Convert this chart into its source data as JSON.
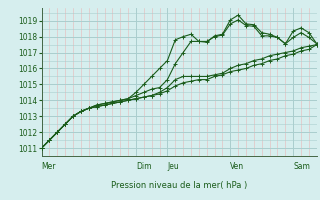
{
  "xlabel": "Pression niveau de la mer( hPa )",
  "ylim": [
    1010.5,
    1019.8
  ],
  "yticks": [
    1011,
    1012,
    1013,
    1014,
    1015,
    1016,
    1017,
    1018,
    1019
  ],
  "day_labels": [
    "Mer",
    "Dim",
    "Jeu",
    "Ven",
    "Sam"
  ],
  "day_positions": [
    0,
    12,
    16,
    24,
    32
  ],
  "background_color": "#d6eeee",
  "grid_color_major": "#aacece",
  "grid_color_minor_x": "#e8b8b8",
  "grid_color_minor_y": "#aacece",
  "line_color": "#1a5c1a",
  "n_points": 36,
  "series": [
    [
      1011.0,
      1011.5,
      1012.0,
      1012.5,
      1013.0,
      1013.3,
      1013.5,
      1013.7,
      1013.8,
      1013.9,
      1014.0,
      1014.1,
      1014.5,
      1015.0,
      1015.5,
      1016.0,
      1016.5,
      1017.8,
      1018.0,
      1018.15,
      1017.7,
      1017.65,
      1018.05,
      1018.15,
      1019.05,
      1019.35,
      1018.8,
      1018.75,
      1018.25,
      1018.15,
      1017.95,
      1017.55,
      1018.35,
      1018.55,
      1018.25,
      1017.55
    ],
    [
      1011.0,
      1011.5,
      1012.0,
      1012.5,
      1013.0,
      1013.3,
      1013.5,
      1013.7,
      1013.8,
      1013.9,
      1014.0,
      1014.1,
      1014.3,
      1014.5,
      1014.7,
      1014.8,
      1015.3,
      1016.3,
      1017.0,
      1017.7,
      1017.7,
      1017.7,
      1018.0,
      1018.1,
      1018.8,
      1019.05,
      1018.7,
      1018.65,
      1018.05,
      1018.05,
      1017.95,
      1017.55,
      1017.95,
      1018.25,
      1017.95,
      1017.55
    ],
    [
      1011.0,
      1011.5,
      1012.0,
      1012.5,
      1013.0,
      1013.3,
      1013.5,
      1013.6,
      1013.7,
      1013.8,
      1013.9,
      1014.0,
      1014.1,
      1014.2,
      1014.3,
      1014.5,
      1014.8,
      1015.3,
      1015.5,
      1015.5,
      1015.5,
      1015.5,
      1015.6,
      1015.7,
      1016.0,
      1016.2,
      1016.3,
      1016.5,
      1016.6,
      1016.8,
      1016.9,
      1017.0,
      1017.1,
      1017.3,
      1017.4,
      1017.5
    ],
    [
      1011.0,
      1011.5,
      1012.0,
      1012.5,
      1013.0,
      1013.3,
      1013.5,
      1013.6,
      1013.7,
      1013.8,
      1013.9,
      1014.0,
      1014.1,
      1014.2,
      1014.3,
      1014.4,
      1014.6,
      1014.9,
      1015.1,
      1015.2,
      1015.3,
      1015.3,
      1015.5,
      1015.6,
      1015.8,
      1015.9,
      1016.0,
      1016.2,
      1016.3,
      1016.5,
      1016.6,
      1016.8,
      1016.9,
      1017.1,
      1017.2,
      1017.5
    ]
  ]
}
